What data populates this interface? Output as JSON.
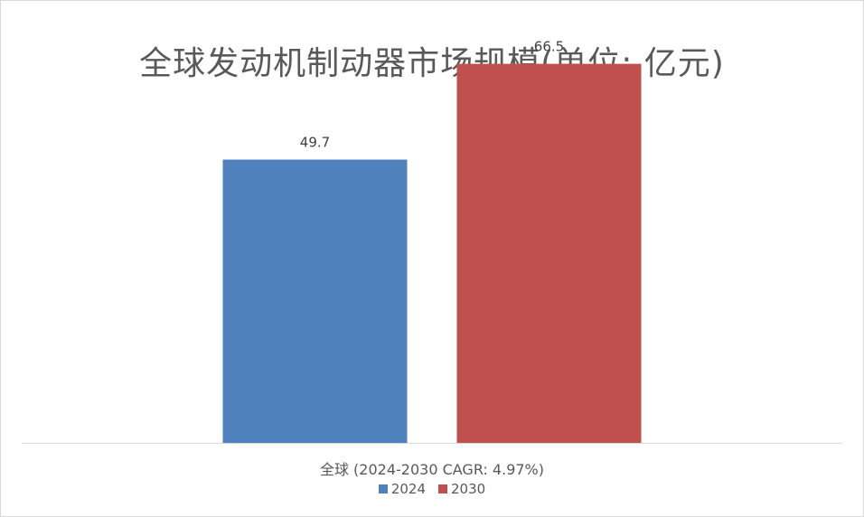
{
  "chart_data": {
    "type": "bar",
    "title": "全球发动机制动器市场规模(单位: 亿元)",
    "categories": [
      "全球 (2024-2030 CAGR: 4.97%)"
    ],
    "series": [
      {
        "name": "2024",
        "values": [
          49.7
        ],
        "color": "#4f81bd"
      },
      {
        "name": "2030",
        "values": [
          66.5
        ],
        "color": "#c0504d"
      }
    ],
    "data_labels": [
      "49.7",
      "66.5"
    ],
    "ylim": [
      0,
      75
    ],
    "grid": false,
    "legend_position": "bottom"
  }
}
